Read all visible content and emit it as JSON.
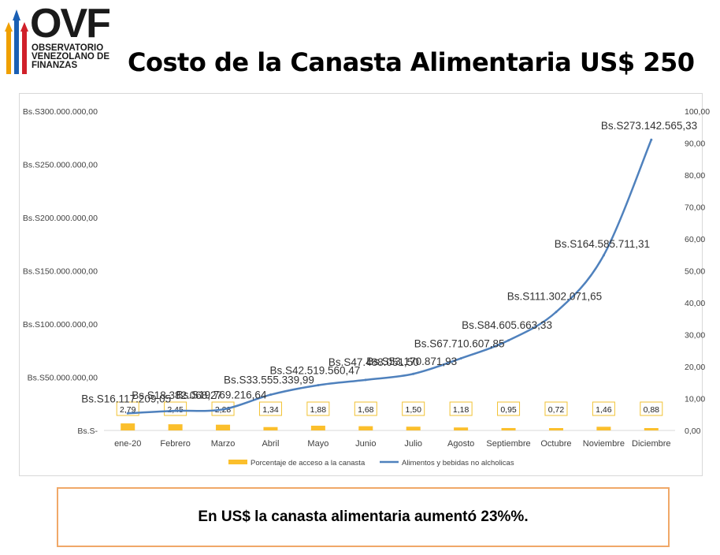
{
  "header": {
    "logo_text": "OVF",
    "logo_subtitle_lines": [
      "OBSERVATORIO",
      "VENEZOLANO DE",
      "FINANZAS"
    ],
    "title": "Costo de la Canasta Alimentaria US$ 250"
  },
  "note": {
    "text": "En US$ la canasta alimentaria aumentó 23%%."
  },
  "colors": {
    "line": "#4f81bd",
    "bar": "#fbbf2c",
    "bar_label_border": "#f1c232"
  },
  "chart_data": {
    "type": "bar+line",
    "title": "Costo de la Canasta Alimentaria US$ 250",
    "categories": [
      "ene-20",
      "Febrero",
      "Marzo",
      "Abril",
      "Mayo",
      "Junio",
      "Julio",
      "Agosto",
      "Septiembre",
      "Octubre",
      "Noviembre",
      "Diciembre"
    ],
    "left_axis": {
      "range": [
        0,
        300000000
      ],
      "ticks": [
        0,
        50000000,
        100000000,
        150000000,
        200000000,
        250000000,
        300000000
      ],
      "tick_labels": [
        "Bs.S-",
        "Bs.S50.000.000,00",
        "Bs.S100.000.000,00",
        "Bs.S150.000.000,00",
        "Bs.S200.000.000,00",
        "Bs.S250.000.000,00",
        "Bs.S300.000.000,00"
      ]
    },
    "right_axis": {
      "range": [
        0,
        100
      ],
      "ticks": [
        0,
        10,
        20,
        30,
        40,
        50,
        60,
        70,
        80,
        90,
        100
      ],
      "tick_labels": [
        "0,00",
        "10,00",
        "20,00",
        "30,00",
        "40,00",
        "50,00",
        "60,00",
        "70,00",
        "80,00",
        "90,00",
        "100,00"
      ]
    },
    "series": [
      {
        "name": "Porcentaje  de acceso a la canasta",
        "type": "bar",
        "axis": "left",
        "values": [
          2.79,
          2.45,
          2.28,
          1.34,
          1.88,
          1.68,
          1.5,
          1.18,
          0.95,
          0.72,
          1.46,
          0.88
        ],
        "labels": [
          "2,79",
          "2,45",
          "2,28",
          "1,34",
          "1,88",
          "1,68",
          "1,50",
          "1,18",
          "0,95",
          "0,72",
          "1,46",
          "0,88"
        ]
      },
      {
        "name": "Alimentos y bebidas no alcholicas",
        "type": "line",
        "axis": "right",
        "values": [
          5.37,
          6.13,
          6.59,
          11.19,
          14.17,
          15.83,
          17.72,
          22.57,
          28.2,
          37.1,
          54.86,
          91.05
        ],
        "labels": [
          "Bs.S16.117.209,05",
          "Bs.S18.382.068,27",
          "Bs.S19.769.216,64",
          "Bs.S33.555.339,99",
          "Bs.S42.519.560,47",
          "Bs.S47.488.051,50",
          "Bs.S53.170.871,93",
          "Bs.S67.710.607,85",
          "Bs.S84.605.663,33",
          "Bs.S111.302.071,65",
          "Bs.S164.585.711,31",
          "Bs.S273.142.565,33"
        ]
      }
    ],
    "legend_position": "bottom"
  }
}
